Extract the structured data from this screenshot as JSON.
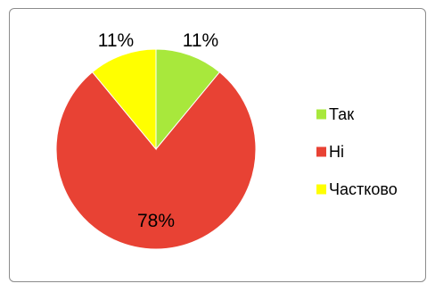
{
  "chart_data": {
    "type": "pie",
    "categories": [
      "Так",
      "Ні",
      "Частково"
    ],
    "values": [
      11,
      78,
      11
    ],
    "data_labels": [
      "11%",
      "78%",
      "11%"
    ],
    "colors": [
      "#a8e83c",
      "#e84234",
      "#ffff00"
    ],
    "legend_placement": "right",
    "title": ""
  }
}
